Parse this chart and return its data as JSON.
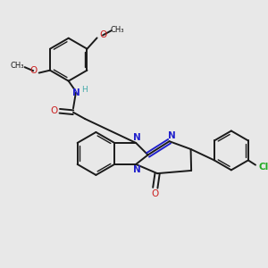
{
  "bg_color": "#e8e8e8",
  "bond_color": "#1a1a1a",
  "nitrogen_color": "#2020cc",
  "oxygen_color": "#cc2020",
  "chlorine_color": "#22aa22",
  "hydrogen_color": "#44aaaa",
  "figsize": [
    3.0,
    3.0
  ],
  "dpi": 100,
  "xlim": [
    0,
    10
  ],
  "ylim": [
    0,
    10
  ]
}
